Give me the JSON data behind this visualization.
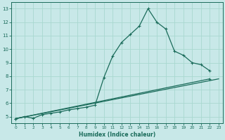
{
  "title": "",
  "xlabel": "Humidex (Indice chaleur)",
  "ylabel": "",
  "background_color": "#c8e8e8",
  "grid_color": "#b0d8d8",
  "line_color": "#1a6b5a",
  "xlim": [
    -0.5,
    23.5
  ],
  "ylim": [
    4.5,
    13.5
  ],
  "xticks": [
    0,
    1,
    2,
    3,
    4,
    5,
    6,
    7,
    8,
    9,
    10,
    11,
    12,
    13,
    14,
    15,
    16,
    17,
    18,
    19,
    20,
    21,
    22,
    23
  ],
  "yticks": [
    5,
    6,
    7,
    8,
    9,
    10,
    11,
    12,
    13
  ],
  "line1_y": [
    4.85,
    5.0,
    4.88,
    5.15,
    5.25,
    5.35,
    5.5,
    5.6,
    5.7,
    5.85,
    7.9,
    9.5,
    10.5,
    11.1,
    11.7,
    13.0,
    12.0,
    11.5,
    9.85,
    9.55,
    9.0,
    8.85,
    8.4,
    null
  ],
  "line2_y": [
    4.85,
    5.0,
    4.88,
    5.15,
    5.25,
    5.4,
    5.6,
    6.5,
    6.2,
    6.3,
    7.8,
    null,
    null,
    null,
    null,
    null,
    null,
    null,
    null,
    9.55,
    null,
    null,
    8.4,
    null
  ],
  "line3_y": [
    4.85,
    5.0,
    4.88,
    5.15,
    5.25,
    5.35,
    5.5,
    5.6,
    5.7,
    5.85,
    6.0,
    6.2,
    6.4,
    6.6,
    6.8,
    7.0,
    7.3,
    7.55,
    7.8,
    8.05,
    8.3,
    8.5,
    7.8,
    null
  ]
}
